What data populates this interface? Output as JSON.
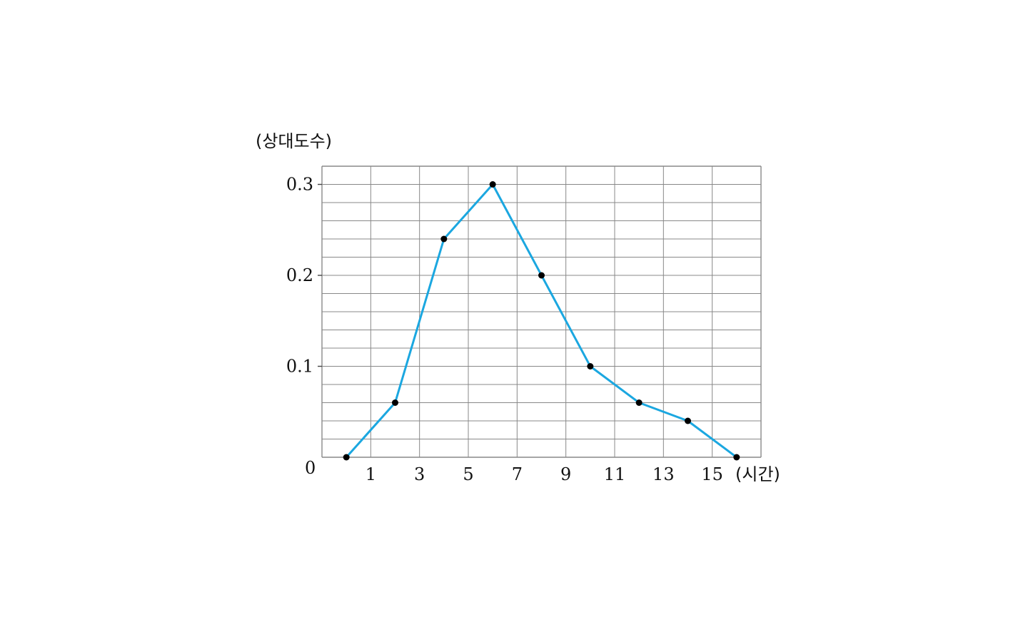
{
  "chart_data": {
    "type": "line",
    "title": "",
    "xlabel": "(시간)",
    "ylabel": "(상대도수)",
    "origin_label": "0",
    "xlim": [
      -1,
      17
    ],
    "ylim": [
      0,
      0.32
    ],
    "x_ticks": [
      1,
      3,
      5,
      7,
      9,
      11,
      13,
      15
    ],
    "x_tick_labels": [
      "1",
      "3",
      "5",
      "7",
      "9",
      "11",
      "13",
      "15"
    ],
    "y_ticks": [
      0.1,
      0.2,
      0.3
    ],
    "y_tick_labels": [
      "0.1",
      "0.2",
      "0.3"
    ],
    "grid": true,
    "legend": "none",
    "line_color": "#1ba7e0",
    "marker_color": "#000000",
    "grid_color": "#888888",
    "series": [
      {
        "points": [
          {
            "x": 0,
            "y": 0
          },
          {
            "x": 2,
            "y": 0.06
          },
          {
            "x": 4,
            "y": 0.24
          },
          {
            "x": 6,
            "y": 0.3
          },
          {
            "x": 8,
            "y": 0.2
          },
          {
            "x": 10,
            "y": 0.1
          },
          {
            "x": 12,
            "y": 0.06
          },
          {
            "x": 14,
            "y": 0.04
          },
          {
            "x": 16,
            "y": 0
          }
        ]
      }
    ]
  }
}
